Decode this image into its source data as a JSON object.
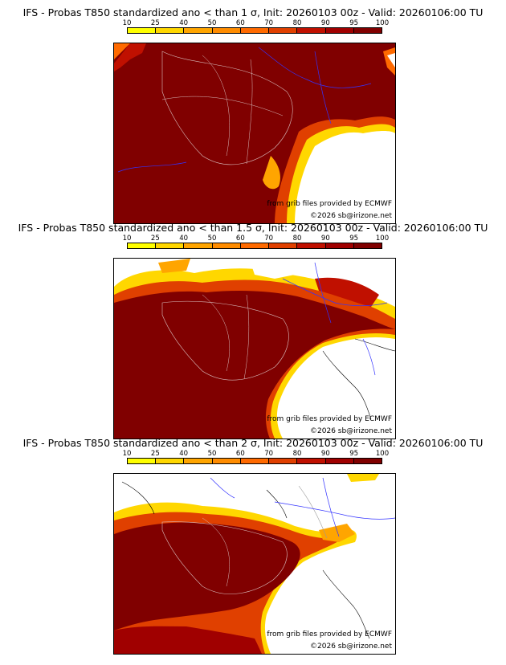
{
  "colorbar": {
    "ticks": [
      "10",
      "25",
      "40",
      "50",
      "60",
      "70",
      "80",
      "90",
      "95",
      "100"
    ],
    "colors": [
      "#ffff00",
      "#ffd700",
      "#ffa500",
      "#ff8c00",
      "#ff6a00",
      "#e04000",
      "#c01000",
      "#a00000",
      "#800000"
    ]
  },
  "panels": [
    {
      "title": "IFS - Probas T850  standardized ano < than 1 σ, Init: 20260103 00z - Valid: 20260106:00 TU"
    },
    {
      "title": "IFS - Probas T850  standardized ano < than 1.5 σ, Init: 20260103 00z - Valid: 20260106:00 TU"
    },
    {
      "title": "IFS - Probas T850  standardized ano < than 2 σ, Init: 20260103 00z - Valid: 20260106:00 TU"
    }
  ],
  "credits": {
    "source": "from grib files provided by ECMWF",
    "copyright": "©2026 sb@irizone.net"
  }
}
